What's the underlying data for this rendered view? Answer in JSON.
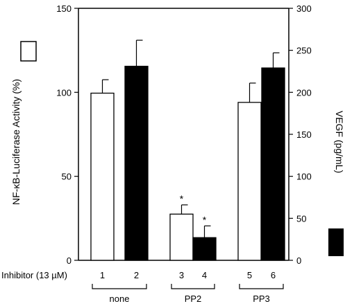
{
  "chart_data": {
    "type": "bar",
    "categories": [
      "1",
      "2",
      "3",
      "4",
      "5",
      "6"
    ],
    "series": [
      {
        "name": "NF-κB-Luciferase Activity (%)",
        "axis": "left",
        "fill": "#ffffff",
        "bars": [
          {
            "category": "1",
            "value": 99.5,
            "error": 8,
            "significant": false
          },
          {
            "category": "3",
            "value": 27.5,
            "error": 5.5,
            "significant": true
          },
          {
            "category": "5",
            "value": 94,
            "error": 11.5,
            "significant": false
          }
        ]
      },
      {
        "name": "VEGF (pg/mL)",
        "axis": "right",
        "fill": "#000000",
        "bars": [
          {
            "category": "2",
            "value": 231,
            "error": 31,
            "significant": false
          },
          {
            "category": "4",
            "value": 27,
            "error": 14,
            "significant": true
          },
          {
            "category": "6",
            "value": 229,
            "error": 18,
            "significant": false
          }
        ]
      }
    ],
    "left_axis": {
      "label": "NF-κB-Luciferase Activity (%)",
      "min": 0,
      "max": 150,
      "ticks": [
        0,
        50,
        100,
        150
      ]
    },
    "right_axis": {
      "label": "VEGF (pg/mL)",
      "min": 0,
      "max": 300,
      "ticks": [
        0,
        50,
        100,
        150,
        200,
        250,
        300
      ]
    },
    "x_axis_label": "Inhibitor (13 µM)",
    "groups": [
      {
        "label": "none",
        "categories": [
          "1",
          "2"
        ]
      },
      {
        "label": "PP2",
        "categories": [
          "3",
          "4"
        ]
      },
      {
        "label": "PP3",
        "categories": [
          "5",
          "6"
        ]
      }
    ],
    "significance_marker": "*",
    "grid": false
  }
}
